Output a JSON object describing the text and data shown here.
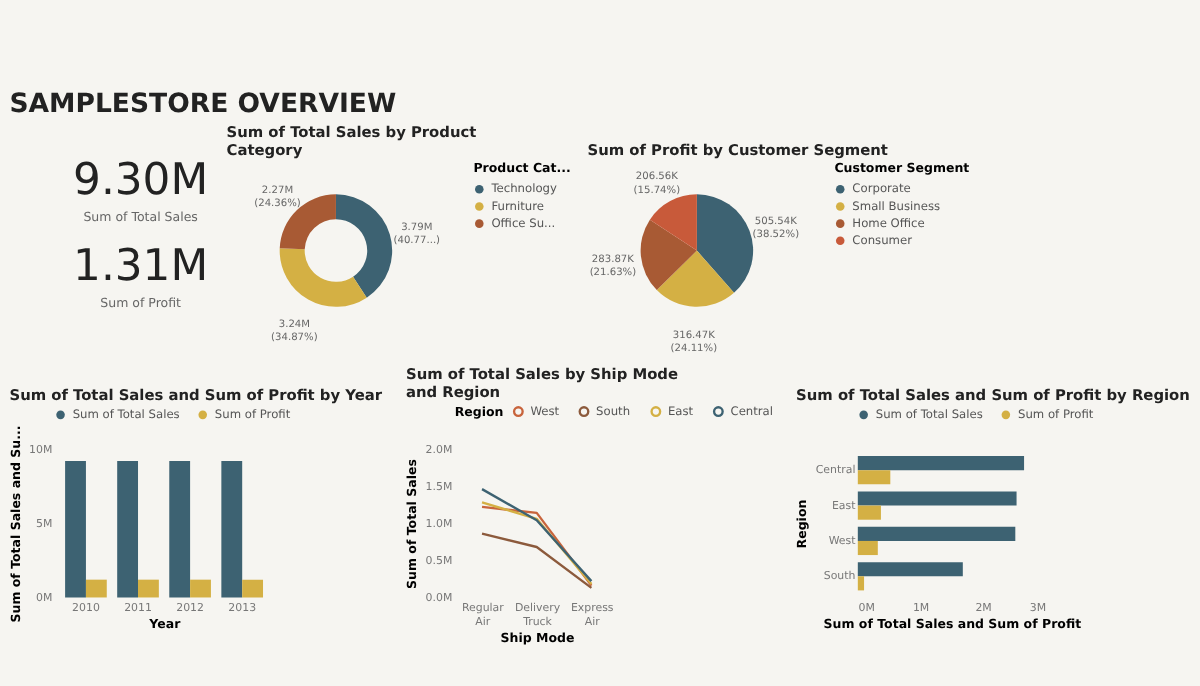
{
  "chart_data": [
    {
      "type": "other",
      "title": "SAMPLESTORE OVERVIEW",
      "annotations": [
        "9.30M",
        "Sum of Total Sales",
        "1.31M",
        "Sum of Profit"
      ]
    },
    {
      "type": "donut",
      "title": "Sum of Total Sales by Product Category",
      "legend_title": "Product Cat...",
      "legend": "right",
      "categories": [
        "Technology",
        "Furniture",
        "Office Su..."
      ],
      "values": [
        40.77,
        34.87,
        24.36
      ],
      "colors": [
        "#3d6272",
        "#d4b044",
        "#a85a34"
      ],
      "value_labels": [
        "3.79M (40.77...)",
        "3.24M (34.87%)",
        "2.27M (24.36%)"
      ]
    },
    {
      "type": "pie",
      "title": "Sum of Profit by Customer Segment",
      "legend_title": "Customer Segment",
      "legend": "right",
      "categories": [
        "Corporate",
        "Small Business",
        "Home Office",
        "Consumer"
      ],
      "values": [
        38.52,
        24.11,
        21.63,
        15.74
      ],
      "colors": [
        "#3d6272",
        "#d4b044",
        "#a85a34",
        "#c85a3a"
      ],
      "value_labels": [
        "505.54K (38.52%)",
        "316.47K (24.11%)",
        "283.87K (21.63%)",
        "206.56K (15.74%)"
      ]
    },
    {
      "type": "bar",
      "title": "Sum of Total Sales and Sum of Profit by Year",
      "xlabel": "Year",
      "ylabel": "Sum of Total Sales and Su...",
      "legend": "top",
      "categories": [
        "2010",
        "2011",
        "2012",
        "2013"
      ],
      "series": [
        {
          "name": "Sum of Total Sales",
          "color": "#3d6272",
          "values": [
            9.2,
            9.2,
            9.2,
            9.2
          ]
        },
        {
          "name": "Sum of Profit",
          "color": "#d4b044",
          "values": [
            1.2,
            1.2,
            1.2,
            1.2
          ]
        }
      ],
      "ylim": [
        0,
        10
      ],
      "yticks": [
        {
          "value": 0,
          "label": "0M"
        },
        {
          "value": 5,
          "label": "5M"
        },
        {
          "value": 10,
          "label": "10M"
        }
      ]
    },
    {
      "type": "line",
      "title": "Sum of Total Sales by Ship Mode and Region",
      "xlabel": "Ship Mode",
      "ylabel": "Sum of Total Sales",
      "legend_title": "Region",
      "legend": "top",
      "categories": [
        "Regular Air",
        "Delivery Truck",
        "Express Air"
      ],
      "series": [
        {
          "name": "West",
          "color": "#c8643c",
          "values": [
            1.22,
            1.14,
            0.16
          ]
        },
        {
          "name": "South",
          "color": "#8c5a3c",
          "values": [
            0.86,
            0.68,
            0.13
          ]
        },
        {
          "name": "East",
          "color": "#d4b044",
          "values": [
            1.28,
            1.06,
            0.18
          ]
        },
        {
          "name": "Central",
          "color": "#3d6272",
          "values": [
            1.46,
            1.04,
            0.22
          ]
        }
      ],
      "ylim": [
        0,
        2
      ],
      "yticks": [
        {
          "value": 0,
          "label": "0.0M"
        },
        {
          "value": 0.5,
          "label": "0.5M"
        },
        {
          "value": 1,
          "label": "1.0M"
        },
        {
          "value": 1.5,
          "label": "1.5M"
        },
        {
          "value": 2,
          "label": "2.0M"
        }
      ],
      "marker": "none",
      "line_style": "solid"
    },
    {
      "type": "bar",
      "orientation": "horizontal",
      "title": "Sum of Total Sales and Sum of Profit by Region",
      "xlabel": "Sum of Total Sales and Sum of Profit",
      "ylabel": "Region",
      "legend": "top",
      "categories": [
        "Central",
        "East",
        "West",
        "South"
      ],
      "series": [
        {
          "name": "Sum of Total Sales",
          "color": "#3d6272",
          "values": [
            2.66,
            2.54,
            2.52,
            1.68
          ]
        },
        {
          "name": "Sum of Profit",
          "color": "#d4b044",
          "values": [
            0.52,
            0.37,
            0.32,
            0.1
          ]
        }
      ],
      "xlim": [
        0,
        3
      ],
      "xticks": [
        {
          "value": 0,
          "label": "0M"
        },
        {
          "value": 1,
          "label": "1M"
        },
        {
          "value": 2,
          "label": "2M"
        },
        {
          "value": 3,
          "label": "3M"
        }
      ]
    }
  ]
}
